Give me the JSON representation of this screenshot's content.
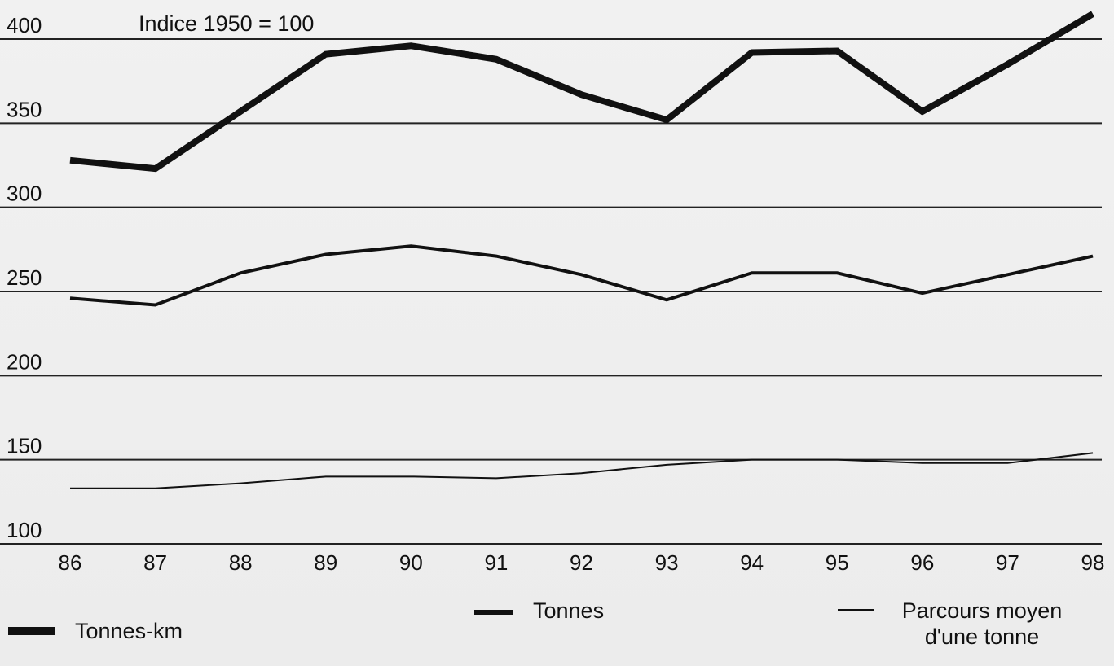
{
  "chart_data": {
    "type": "line",
    "annotation": "Indice 1950 = 100",
    "categories": [
      "86",
      "87",
      "88",
      "89",
      "90",
      "91",
      "92",
      "93",
      "94",
      "95",
      "96",
      "97",
      "98"
    ],
    "ylim": [
      100,
      400
    ],
    "yticks": [
      100,
      150,
      200,
      250,
      300,
      350,
      400
    ],
    "grid": true,
    "legend_position": "bottom",
    "series": [
      {
        "name": "Tonnes-km",
        "values": [
          328,
          323,
          357,
          391,
          396,
          388,
          367,
          352,
          392,
          393,
          357,
          385,
          415
        ],
        "color": "#111111"
      },
      {
        "name": "Tonnes",
        "values": [
          246,
          242,
          261,
          272,
          277,
          271,
          260,
          245,
          261,
          261,
          249,
          260,
          271
        ],
        "color": "#111111"
      },
      {
        "name": "Parcours moyen d'une tonne",
        "values": [
          133,
          133,
          136,
          140,
          140,
          139,
          142,
          147,
          150,
          150,
          148,
          148,
          154
        ],
        "color": "#111111"
      }
    ]
  },
  "legend": {
    "items": [
      {
        "label": "Tonnes-km",
        "color": "#111111"
      },
      {
        "label": "Tonnes",
        "color": "#111111"
      },
      {
        "label_line_1": "Parcours moyen",
        "label_line_2": "d'une tonne",
        "color": "#111111"
      }
    ]
  }
}
